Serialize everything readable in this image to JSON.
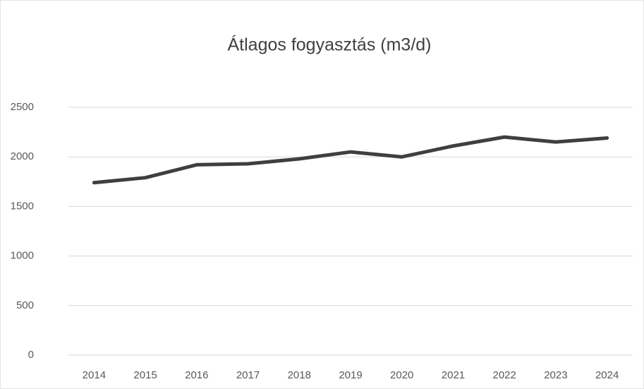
{
  "chart_data": {
    "type": "line",
    "title": "Átlagos fogyasztás (m3/d)",
    "categories": [
      "2014",
      "2015",
      "2016",
      "2017",
      "2018",
      "2019",
      "2020",
      "2021",
      "2022",
      "2023",
      "2024"
    ],
    "series": [
      {
        "color": "#3f3f3f",
        "values": [
          1740,
          1790,
          1920,
          1930,
          1980,
          2050,
          2000,
          2110,
          2200,
          2150,
          2190
        ]
      }
    ],
    "ylim": [
      0,
      2500
    ],
    "yticks": [
      0,
      500,
      1000,
      1500,
      2000,
      2500
    ],
    "grid": true
  }
}
